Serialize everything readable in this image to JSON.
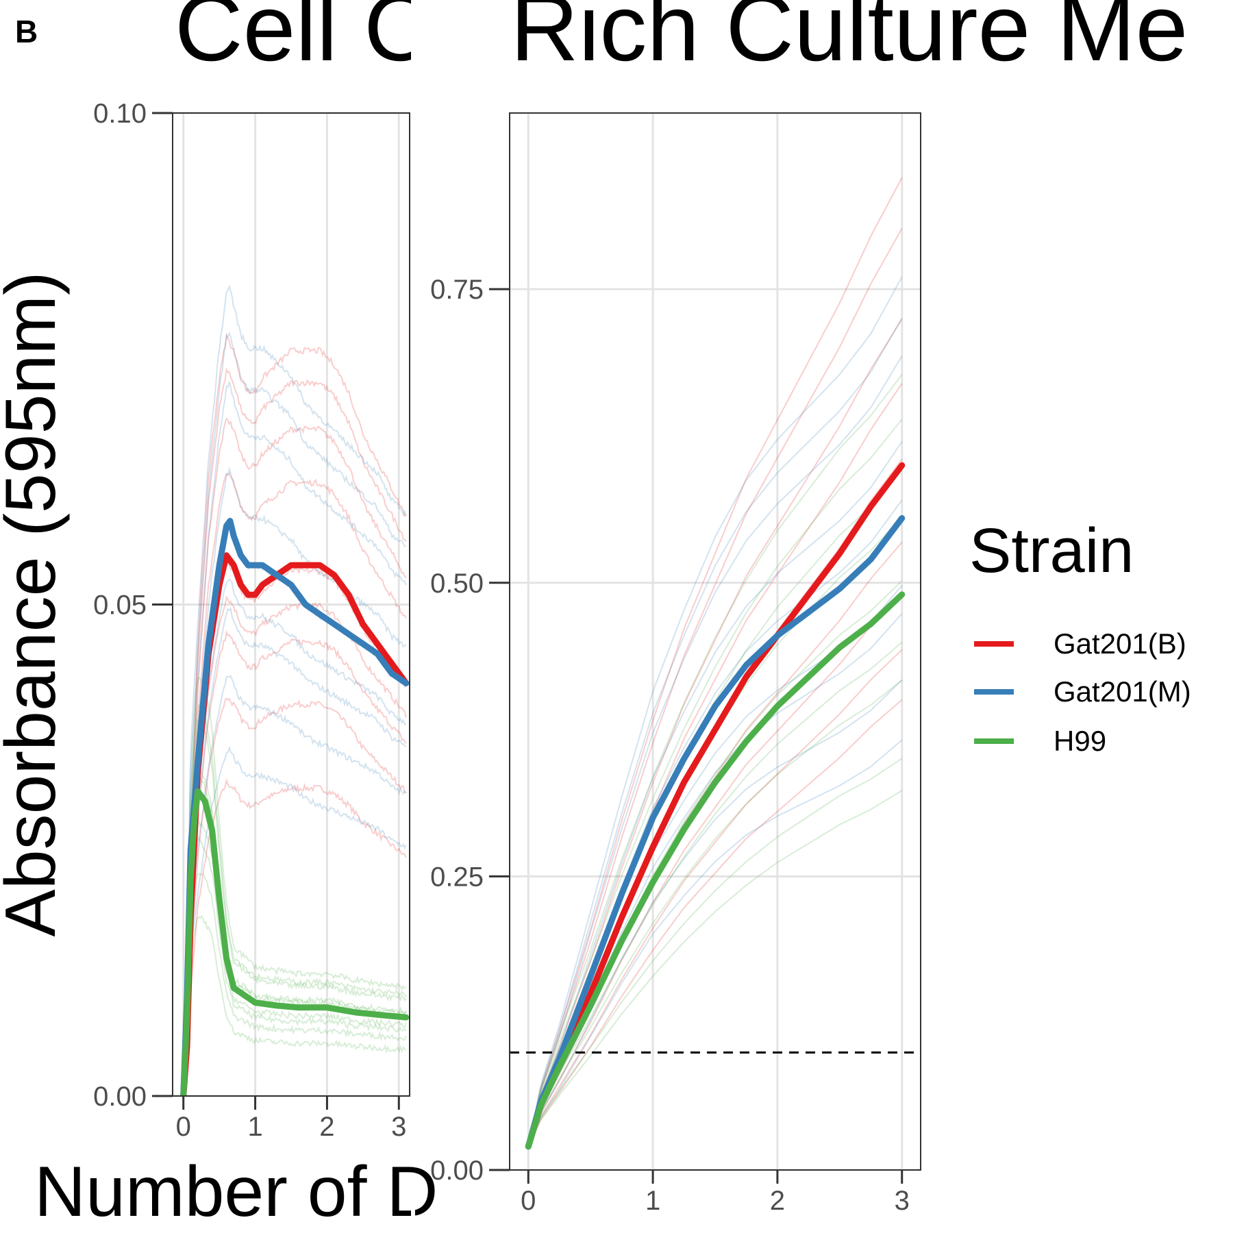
{
  "figure": {
    "panel_letter": "B",
    "title_left": "Cell C",
    "title_right": "Rich Culture Me",
    "ylabel": "Absorbance (595nm)",
    "xlabel": "Number of D"
  },
  "legend": {
    "title": "Strain",
    "entries": [
      {
        "name": "Gat201(B)",
        "color": "#e41a1c"
      },
      {
        "name": "Gat201(M)",
        "color": "#377eb8"
      },
      {
        "name": "H99",
        "color": "#4daf4a"
      }
    ]
  },
  "chart_data": [
    {
      "type": "line",
      "xlim": [
        -0.15,
        3.15
      ],
      "ylim": [
        0,
        0.1
      ],
      "xticks": [
        "0",
        "1",
        "2",
        "3"
      ],
      "yticks": [
        "0.00",
        "0.05",
        "0.10"
      ],
      "grid": true,
      "legend": "right",
      "series": [
        {
          "name": "Gat201(B)",
          "color": "#e41a1c",
          "x": [
            0,
            0.05,
            0.1,
            0.2,
            0.35,
            0.5,
            0.6,
            0.7,
            0.8,
            0.9,
            1.0,
            1.1,
            1.3,
            1.5,
            1.7,
            1.9,
            2.1,
            2.3,
            2.5,
            2.7,
            2.9,
            3.1
          ],
          "y": [
            0.0,
            0.005,
            0.018,
            0.033,
            0.045,
            0.052,
            0.055,
            0.054,
            0.052,
            0.051,
            0.051,
            0.052,
            0.053,
            0.054,
            0.054,
            0.054,
            0.053,
            0.051,
            0.048,
            0.046,
            0.044,
            0.042
          ]
        },
        {
          "name": "Gat201(M)",
          "color": "#377eb8",
          "x": [
            0,
            0.05,
            0.1,
            0.2,
            0.35,
            0.5,
            0.6,
            0.65,
            0.7,
            0.8,
            0.9,
            1.0,
            1.1,
            1.3,
            1.5,
            1.7,
            1.9,
            2.1,
            2.3,
            2.5,
            2.7,
            2.9,
            3.1
          ],
          "y": [
            0.0,
            0.01,
            0.025,
            0.034,
            0.046,
            0.054,
            0.058,
            0.0585,
            0.057,
            0.055,
            0.054,
            0.054,
            0.054,
            0.053,
            0.052,
            0.05,
            0.049,
            0.048,
            0.047,
            0.046,
            0.045,
            0.043,
            0.042
          ]
        },
        {
          "name": "H99",
          "color": "#4daf4a",
          "x": [
            0,
            0.05,
            0.1,
            0.15,
            0.2,
            0.3,
            0.4,
            0.5,
            0.6,
            0.7,
            0.8,
            1.0,
            1.3,
            1.6,
            2.0,
            2.4,
            2.8,
            3.1
          ],
          "y": [
            0.0,
            0.008,
            0.022,
            0.028,
            0.031,
            0.03,
            0.027,
            0.02,
            0.014,
            0.011,
            0.0105,
            0.0095,
            0.0092,
            0.009,
            0.009,
            0.0085,
            0.0082,
            0.008
          ]
        }
      ]
    },
    {
      "type": "line",
      "xlim": [
        -0.15,
        3.15
      ],
      "ylim": [
        0,
        0.9
      ],
      "xticks": [
        "0",
        "1",
        "2",
        "3"
      ],
      "yticks": [
        "0.00",
        "0.25",
        "0.50",
        "0.75"
      ],
      "grid": true,
      "hline": 0.1,
      "legend": "right",
      "series": [
        {
          "name": "Gat201(B)",
          "color": "#e41a1c",
          "x": [
            0,
            0.1,
            0.25,
            0.5,
            0.75,
            1.0,
            1.25,
            1.5,
            1.75,
            2.0,
            2.25,
            2.5,
            2.75,
            3.0
          ],
          "y": [
            0.02,
            0.055,
            0.09,
            0.15,
            0.215,
            0.275,
            0.33,
            0.375,
            0.42,
            0.455,
            0.49,
            0.525,
            0.565,
            0.6
          ]
        },
        {
          "name": "Gat201(M)",
          "color": "#377eb8",
          "x": [
            0,
            0.1,
            0.25,
            0.5,
            0.75,
            1.0,
            1.25,
            1.5,
            1.75,
            2.0,
            2.25,
            2.5,
            2.75,
            3.0
          ],
          "y": [
            0.02,
            0.058,
            0.095,
            0.165,
            0.235,
            0.3,
            0.35,
            0.395,
            0.43,
            0.455,
            0.475,
            0.495,
            0.52,
            0.555
          ]
        },
        {
          "name": "H99",
          "color": "#4daf4a",
          "x": [
            0,
            0.1,
            0.25,
            0.5,
            0.75,
            1.0,
            1.25,
            1.5,
            1.75,
            2.0,
            2.25,
            2.5,
            2.75,
            3.0
          ],
          "y": [
            0.02,
            0.055,
            0.088,
            0.14,
            0.195,
            0.245,
            0.29,
            0.33,
            0.365,
            0.395,
            0.42,
            0.445,
            0.465,
            0.49
          ]
        }
      ]
    }
  ]
}
